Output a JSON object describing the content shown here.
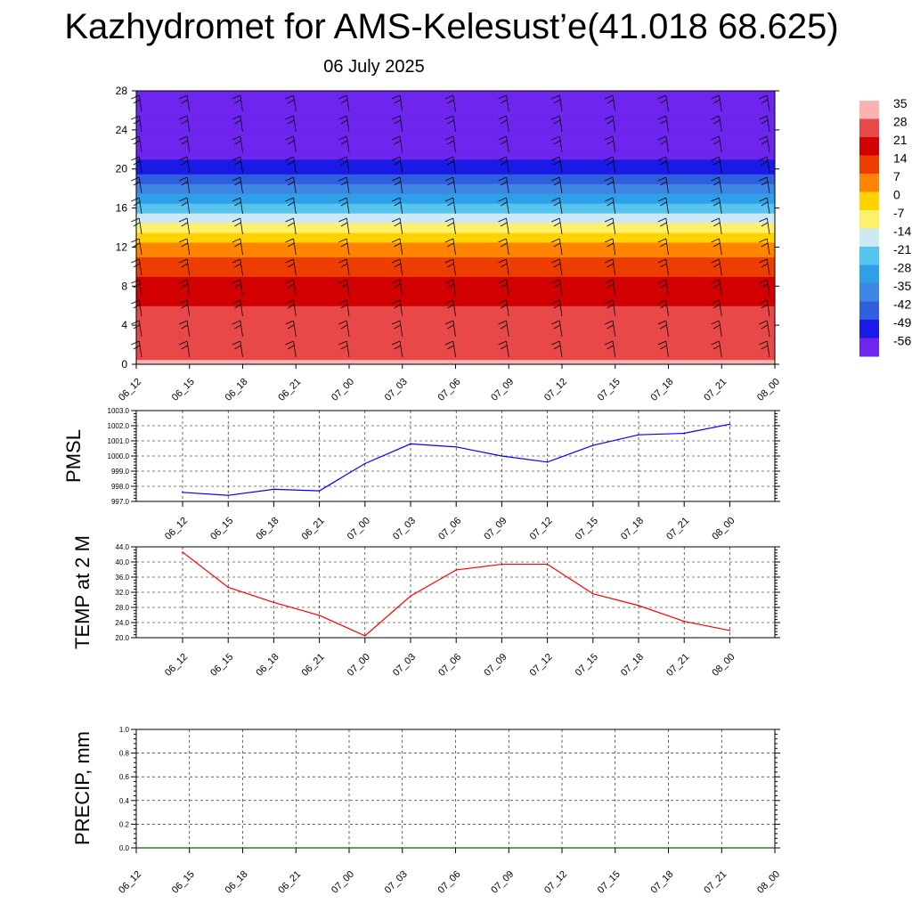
{
  "title": "Kazhydromet for AMS-Kelesust’e(41.018 68.625)",
  "subtitle": "06 July 2025",
  "colors": {
    "pmsl_line": "#0000ff",
    "temp_line": "#ff0000",
    "precip_line": "#006400",
    "grid": "#000000"
  },
  "chart_data": [
    {
      "type": "heatmap",
      "title": "",
      "x_ticks": [
        "06_12",
        "06_15",
        "06_18",
        "06_21",
        "07_00",
        "07_03",
        "07_06",
        "07_09",
        "07_12",
        "07_15",
        "07_18",
        "07_21",
        "08_00"
      ],
      "y_ticks": [
        0,
        4,
        8,
        12,
        16,
        20,
        24,
        28
      ],
      "ylim": [
        0,
        28
      ],
      "colorbar_labels": [
        "35",
        "28",
        "21",
        "14",
        "7",
        "0",
        "-7",
        "-14",
        "-21",
        "-28",
        "-35",
        "-42",
        "-49",
        "-56"
      ],
      "color_levels": [
        35,
        28,
        21,
        14,
        7,
        0,
        -7,
        -14,
        -21,
        -28,
        -35,
        -42,
        -49,
        -56
      ],
      "vertical_profile": [
        {
          "level": 0,
          "value": 32
        },
        {
          "level": 4,
          "value": 28
        },
        {
          "level": 8,
          "value": 20
        },
        {
          "level": 10,
          "value": 14
        },
        {
          "level": 12,
          "value": 7
        },
        {
          "level": 14,
          "value": -7
        },
        {
          "level": 16,
          "value": -21
        },
        {
          "level": 18,
          "value": -35
        },
        {
          "level": 20,
          "value": -49
        },
        {
          "level": 22,
          "value": -56
        },
        {
          "level": 28,
          "value": -60
        }
      ],
      "overlay": "wind barbs"
    },
    {
      "type": "line",
      "ylabel": "PMSL",
      "categories": [
        "06_12",
        "06_15",
        "06_18",
        "06_21",
        "07_00",
        "07_03",
        "07_06",
        "07_09",
        "07_12",
        "07_15",
        "07_18",
        "07_21",
        "08_00"
      ],
      "series": [
        {
          "values": [
            997.6,
            997.4,
            997.8,
            997.7,
            999.5,
            1000.8,
            1000.6,
            1000.0,
            999.6,
            1000.7,
            1001.4,
            1001.5,
            1002.1
          ]
        }
      ],
      "ylim": [
        997.0,
        1003.0
      ],
      "y_ticks": [
        "997.0",
        "998.0",
        "999.0",
        "1000.0",
        "1001.0",
        "1002.0",
        "1003.0"
      ],
      "grid": true
    },
    {
      "type": "line",
      "ylabel": "TEMP at 2 M",
      "categories": [
        "06_12",
        "06_15",
        "06_18",
        "06_21",
        "07_00",
        "07_03",
        "07_06",
        "07_09",
        "07_12",
        "07_15",
        "07_18",
        "07_21",
        "08_00"
      ],
      "series": [
        {
          "values": [
            42.6,
            33.3,
            29.3,
            25.9,
            20.5,
            31.0,
            37.9,
            39.4,
            39.4,
            31.6,
            28.5,
            24.3,
            21.9
          ]
        }
      ],
      "ylim": [
        20.0,
        44.0
      ],
      "y_ticks": [
        "20.0",
        "24.0",
        "28.0",
        "32.0",
        "36.0",
        "40.0",
        "44.0"
      ],
      "grid": true
    },
    {
      "type": "line",
      "ylabel": "PRECIP, mm",
      "categories": [
        "06_15",
        "06_18",
        "06_21",
        "07_00",
        "07_03",
        "07_06",
        "07_09",
        "07_12",
        "07_15",
        "07_18",
        "07_21"
      ],
      "x_ticks": [
        "06_12",
        "06_15",
        "06_18",
        "06_21",
        "07_00",
        "07_03",
        "07_06",
        "07_09",
        "07_12",
        "07_15",
        "07_18",
        "07_21",
        "08_00"
      ],
      "series": [
        {
          "values": [
            0,
            0,
            0,
            0,
            0,
            0,
            0,
            0,
            0,
            0,
            0
          ]
        }
      ],
      "ylim": [
        0.0,
        1.0
      ],
      "y_ticks": [
        "0.0",
        "0.2",
        "0.4",
        "0.6",
        "0.8",
        "1.0"
      ],
      "grid": true
    }
  ]
}
